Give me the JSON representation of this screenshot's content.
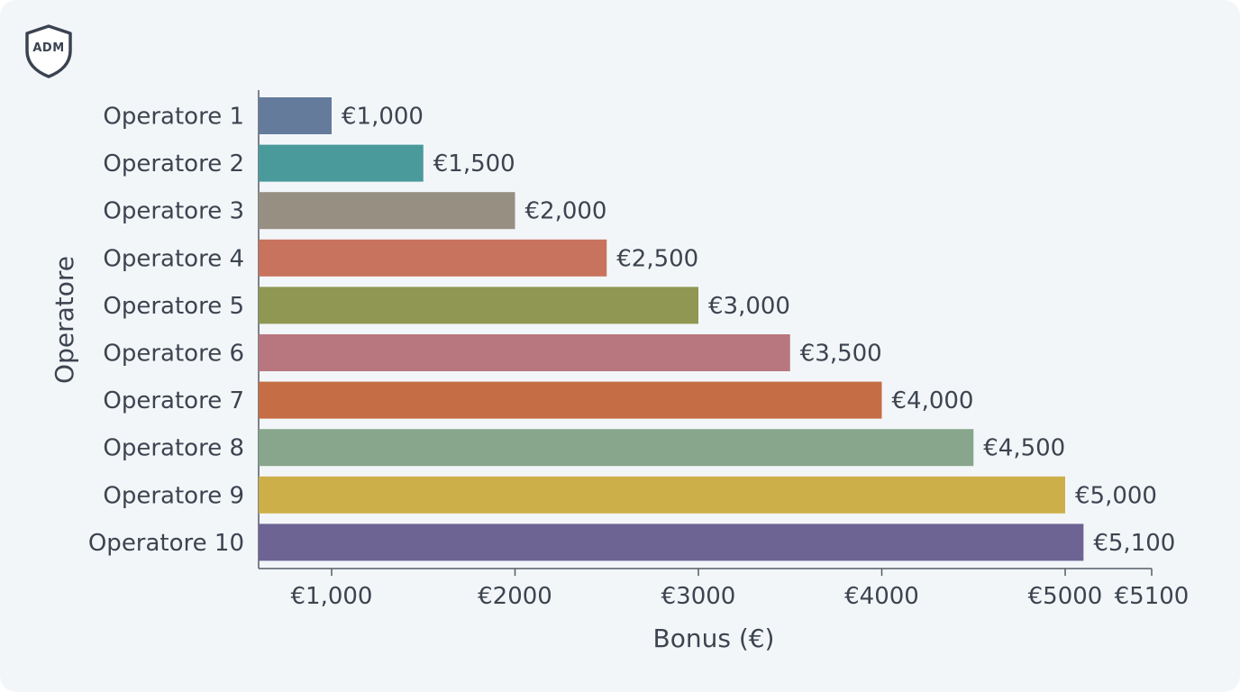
{
  "logo": {
    "text": "ADM",
    "icon": "shield-icon"
  },
  "chart_data": {
    "type": "bar",
    "orientation": "horizontal",
    "title": "",
    "xlabel": "Bonus (€)",
    "ylabel": "Operatore",
    "categories": [
      "Operatore 1",
      "Operatore 2",
      "Operatore 3",
      "Operatore 4",
      "Operatore 5",
      "Operatore 6",
      "Operatore 7",
      "Operatore 8",
      "Operatore 9",
      "Operatore 10"
    ],
    "values": [
      1000,
      1500,
      2000,
      2500,
      3000,
      3500,
      4000,
      4500,
      5000,
      5100
    ],
    "value_labels": [
      "€1,000",
      "€1,500",
      "€2,000",
      "€2,500",
      "€3,000",
      "€3,500",
      "€4,000",
      "€4,500",
      "€5,000",
      "€5,100"
    ],
    "colors": [
      "#647b9c",
      "#4a9a9c",
      "#968f82",
      "#c8735d",
      "#8f9752",
      "#b8777e",
      "#c56d44",
      "#87a68b",
      "#cdaf4a",
      "#6d6493"
    ],
    "x_ticks": [
      1000,
      2000,
      3000,
      4000,
      5000,
      5100
    ],
    "x_tick_labels": [
      "€1,000",
      "€2000",
      "€3000",
      "€4000",
      "€5000",
      "€5100"
    ],
    "grid": false,
    "legend": "none"
  }
}
